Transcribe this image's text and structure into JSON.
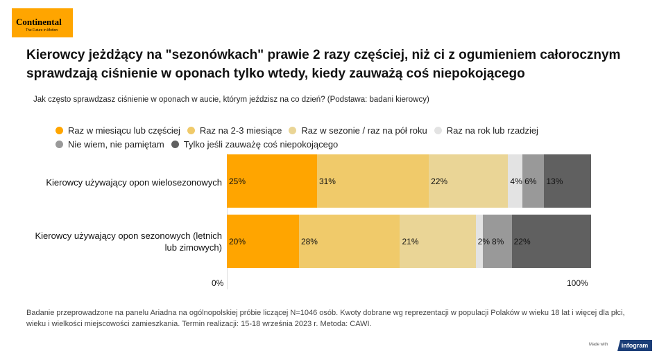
{
  "logo": {
    "brand": "Continental",
    "tagline": "The Future in Motion"
  },
  "title": "Kierowcy jeżdżący na \"sezonówkach\" prawie 2 razy częściej, niż ci z ogumieniem całorocznym sprawdzają ciśnienie w oponach tylko wtedy, kiedy zauważą coś niepokojącego",
  "subtitle": "Jak często sprawdzasz ciśnienie w oponach w aucie, którym jeździsz na co dzień? (Podstawa: badani kierowcy)",
  "chart_data": {
    "type": "bar",
    "orientation": "horizontal-stacked-100",
    "categories": [
      "Kierowcy używający opon wielosezonowych",
      "Kierowcy używający opon sezonowych (letnich lub zimowych)"
    ],
    "series": [
      {
        "name": "Raz w miesiącu lub częściej",
        "color": "#ffa500",
        "values": [
          25,
          20
        ]
      },
      {
        "name": "Raz na 2-3 miesiące",
        "color": "#f0ca6a",
        "values": [
          31,
          28
        ]
      },
      {
        "name": "Raz w sezonie / raz na pół roku",
        "color": "#ead596",
        "values": [
          22,
          21
        ]
      },
      {
        "name": "Raz na rok lub rzadziej",
        "color": "#e3e3e3",
        "values": [
          4,
          2
        ]
      },
      {
        "name": "Nie wiem, nie pamiętam",
        "color": "#999999",
        "values": [
          6,
          8
        ]
      },
      {
        "name": "Tylko jeśli zauważę coś niepokojącego",
        "color": "#606060",
        "values": [
          13,
          22
        ]
      }
    ],
    "xticks": [
      "0%",
      "100%"
    ],
    "legend_position": "top"
  },
  "footnote": "Badanie przeprowadzone na panelu Ariadna na ogólnopolskiej próbie liczącej N=1046 osób. Kwoty dobrane wg reprezentacji w populacji Polaków w wieku 18 lat i więcej dla płci, wieku i wielkości miejscowości zamieszkania. Termin realizacji:  15-18 września 2023 r. Metoda: CAWI.",
  "made_with": "Made with",
  "infogram": "infogram"
}
